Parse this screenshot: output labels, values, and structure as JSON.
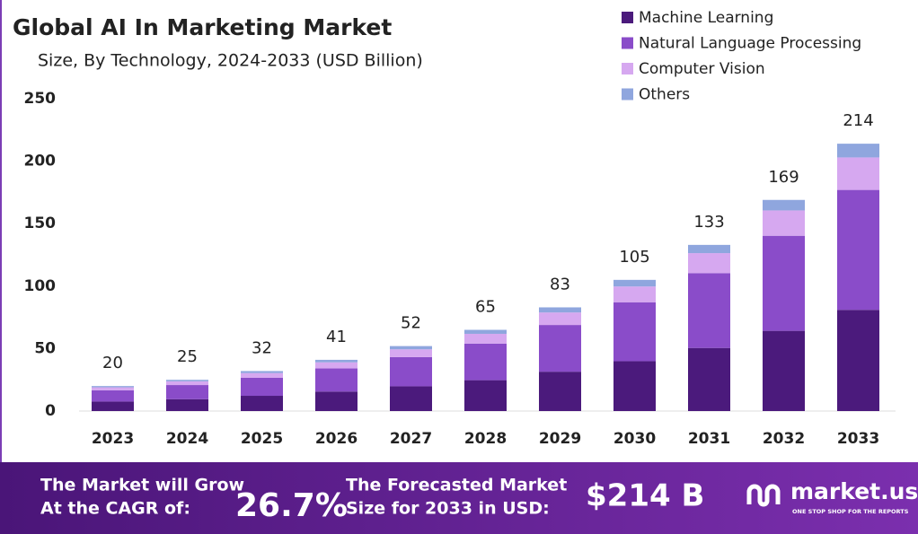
{
  "chart_data": {
    "type": "stacked-bar",
    "title": "Global AI In Marketing  Market",
    "subtitle": "Size, By Technology, 2024-2033 (USD Billion)",
    "categories": [
      "2023",
      "2024",
      "2025",
      "2026",
      "2027",
      "2028",
      "2029",
      "2030",
      "2031",
      "2032",
      "2033"
    ],
    "series": [
      {
        "name": "Machine Learning",
        "color": "#4b1a7c",
        "values": [
          7.6,
          9.5,
          12.2,
          15.6,
          19.8,
          24.7,
          31.5,
          39.9,
          50.5,
          64.2,
          81
        ]
      },
      {
        "name": "Natural Language Processing",
        "color": "#8a4cc9",
        "values": [
          9,
          11.3,
          14.4,
          18.5,
          23.4,
          29.3,
          37.4,
          47.2,
          59.9,
          76.1,
          96
        ]
      },
      {
        "name": "Computer Vision",
        "color": "#d6a8f0",
        "values": [
          2.4,
          3,
          3.8,
          4.9,
          6.2,
          7.8,
          10,
          12.6,
          16,
          20.3,
          26
        ]
      },
      {
        "name": "Others",
        "color": "#8fa6de",
        "values": [
          1,
          1.2,
          1.6,
          2,
          2.6,
          3.2,
          4.1,
          5.3,
          6.6,
          8.4,
          11
        ]
      }
    ],
    "totals": [
      20,
      25,
      32,
      41,
      52,
      65,
      83,
      105,
      133,
      169,
      214
    ],
    "ylim": [
      0,
      250
    ],
    "yticks": [
      0,
      50,
      100,
      150,
      200,
      250
    ],
    "grid": false,
    "legend": "top-right"
  },
  "footer": {
    "cagr_text": [
      "The Market will Grow",
      "At the CAGR of:"
    ],
    "cagr": "26.7%",
    "forecast_text": [
      "The Forecasted Market",
      "Size for 2033 in USD:"
    ],
    "forecast": "$214 B",
    "brand": "market.us",
    "tagline": "ONE STOP SHOP FOR THE REPORTS"
  }
}
